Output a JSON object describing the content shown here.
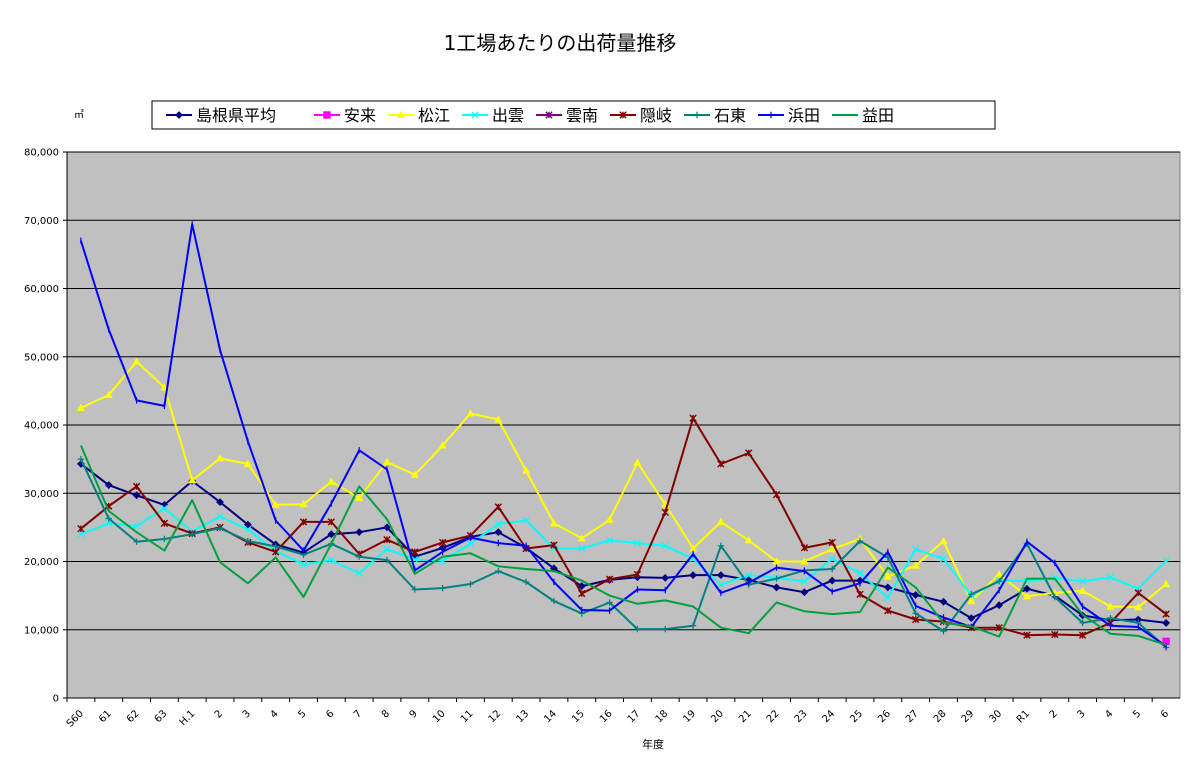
{
  "chart_data": {
    "type": "line",
    "title": "1工場あたりの出荷量推移",
    "xlabel": "年度",
    "ylabel": "",
    "unit_label": "㎥",
    "ylim": [
      0,
      80000
    ],
    "yticks": [
      0,
      10000,
      20000,
      30000,
      40000,
      50000,
      60000,
      70000,
      80000
    ],
    "ytick_labels": [
      "0",
      "10,000",
      "20,000",
      "30,000",
      "40,000",
      "50,000",
      "60,000",
      "70,000",
      "80,000"
    ],
    "grid": true,
    "legend_position": "top",
    "plot_background": "#c0c0c0",
    "categories": [
      "S60",
      "61",
      "62",
      "63",
      "H.1",
      "2",
      "3",
      "4",
      "5",
      "6",
      "7",
      "8",
      "9",
      "10",
      "11",
      "12",
      "13",
      "14",
      "15",
      "16",
      "17",
      "18",
      "19",
      "20",
      "21",
      "22",
      "23",
      "24",
      "25",
      "26",
      "27",
      "28",
      "29",
      "30",
      "R1",
      "2",
      "3",
      "4",
      "5",
      "6"
    ],
    "series": [
      {
        "name": "島根県平均",
        "color": "#000080",
        "marker": "diamond",
        "values": [
          34300,
          31200,
          29700,
          28300,
          31800,
          28700,
          25400,
          22500,
          21300,
          24000,
          24300,
          25000,
          20700,
          22000,
          23600,
          24300,
          22000,
          19000,
          16400,
          17300,
          17700,
          17600,
          18000,
          18000,
          17300,
          16200,
          15500,
          17200,
          17200,
          16200,
          15100,
          14100,
          11700,
          13600,
          16000,
          15000,
          12100,
          11400,
          11500,
          11000
        ]
      },
      {
        "name": "安来",
        "color": "#ff00ff",
        "marker": "square",
        "values": [
          null,
          null,
          null,
          null,
          null,
          null,
          null,
          null,
          null,
          null,
          null,
          null,
          null,
          null,
          null,
          null,
          null,
          null,
          null,
          null,
          null,
          null,
          null,
          null,
          null,
          null,
          null,
          null,
          null,
          null,
          null,
          null,
          null,
          null,
          null,
          null,
          null,
          null,
          null,
          8300
        ]
      },
      {
        "name": "松江",
        "color": "#ffff00",
        "marker": "triangle",
        "values": [
          42500,
          44400,
          49300,
          45500,
          31900,
          35100,
          34300,
          28300,
          28400,
          31700,
          29300,
          34600,
          32700,
          37000,
          41700,
          40800,
          33300,
          25600,
          23400,
          26100,
          34500,
          28400,
          21900,
          25800,
          23100,
          20000,
          20000,
          21800,
          23300,
          17800,
          19400,
          23000,
          14200,
          18100,
          14900,
          15400,
          15700,
          13400,
          13300,
          16700
        ]
      },
      {
        "name": "出雲",
        "color": "#00ffff",
        "marker": "x",
        "values": [
          24000,
          25600,
          25200,
          27800,
          24400,
          26600,
          24700,
          21500,
          19600,
          20200,
          18300,
          21800,
          20300,
          20100,
          22600,
          25500,
          26000,
          21900,
          21900,
          23100,
          22700,
          22300,
          20400,
          16600,
          18000,
          17600,
          17100,
          20400,
          18300,
          14700,
          21800,
          20400,
          15000,
          17200,
          17100,
          17600,
          17100,
          17700,
          16000,
          20100
        ]
      },
      {
        "name": "雲南",
        "color": "#800080",
        "marker": "star",
        "values": [
          null,
          null,
          null,
          null,
          null,
          null,
          null,
          null,
          null,
          null,
          null,
          null,
          null,
          null,
          null,
          null,
          null,
          null,
          null,
          null,
          null,
          null,
          null,
          null,
          null,
          null,
          null,
          null,
          null,
          null,
          null,
          null,
          null,
          null,
          null,
          null,
          null,
          null,
          null,
          null
        ]
      },
      {
        "name": "隠岐",
        "color": "#800000",
        "marker": "star",
        "values": [
          24800,
          28100,
          31000,
          25600,
          24100,
          25000,
          22800,
          21400,
          25800,
          25800,
          21100,
          23200,
          21400,
          22800,
          23800,
          28000,
          21900,
          22400,
          15300,
          17400,
          18100,
          27200,
          41000,
          34300,
          35900,
          29800,
          22000,
          22800,
          15200,
          12800,
          11500,
          11200,
          10300,
          10300,
          9200,
          9300,
          9200,
          11000,
          15400,
          12300
        ]
      },
      {
        "name": "石東",
        "color": "#008080",
        "marker": "plus",
        "values": [
          35000,
          26300,
          22900,
          23300,
          24000,
          24900,
          23000,
          22200,
          21000,
          22600,
          20700,
          20200,
          15900,
          16100,
          16700,
          18600,
          17000,
          14200,
          12400,
          14000,
          10100,
          10100,
          10600,
          22300,
          16600,
          17500,
          18700,
          18900,
          23000,
          20600,
          12400,
          9800,
          15200,
          17100,
          22600,
          14800,
          11000,
          11700,
          11000,
          7400
        ]
      },
      {
        "name": "浜田",
        "color": "#0000ff",
        "marker": "dash",
        "values": [
          67000,
          54000,
          43600,
          42800,
          69400,
          51000,
          37600,
          26000,
          21600,
          28500,
          36300,
          33500,
          18700,
          21400,
          23500,
          22700,
          22300,
          17000,
          12900,
          12800,
          15900,
          15800,
          21100,
          15400,
          16900,
          19100,
          18600,
          15600,
          16800,
          21400,
          13500,
          11800,
          10400,
          15800,
          22900,
          19800,
          13400,
          10600,
          10400,
          7600
        ]
      },
      {
        "name": "益田",
        "color": "#00a040",
        "marker": "none",
        "values": [
          37000,
          27400,
          24300,
          21600,
          29000,
          19900,
          16800,
          20600,
          14800,
          22600,
          31000,
          26200,
          18200,
          20700,
          21200,
          19300,
          18900,
          18600,
          17200,
          15000,
          13800,
          14300,
          13400,
          10300,
          9500,
          14000,
          12700,
          12300,
          12600,
          19100,
          16200,
          11000,
          10500,
          9000,
          17500,
          17500,
          12200,
          9400,
          9100,
          7800
        ]
      }
    ]
  }
}
